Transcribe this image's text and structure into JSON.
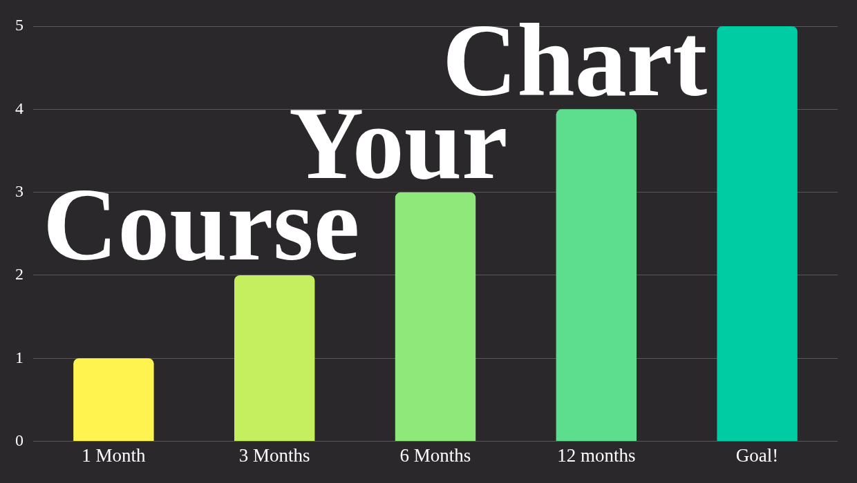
{
  "chart_data": {
    "type": "bar",
    "title": "Chart Your Course",
    "categories": [
      "1 Month",
      "3 Months",
      "6 Months",
      "12 months",
      "Goal!"
    ],
    "values": [
      1,
      2,
      3,
      4,
      5
    ],
    "colors": [
      "#fff44f",
      "#c6ef5f",
      "#8fe87a",
      "#5ddd8e",
      "#00cca3"
    ],
    "ylim": [
      0,
      5
    ],
    "yticks": [
      0,
      1,
      2,
      3,
      4,
      5
    ],
    "grid": "y"
  }
}
